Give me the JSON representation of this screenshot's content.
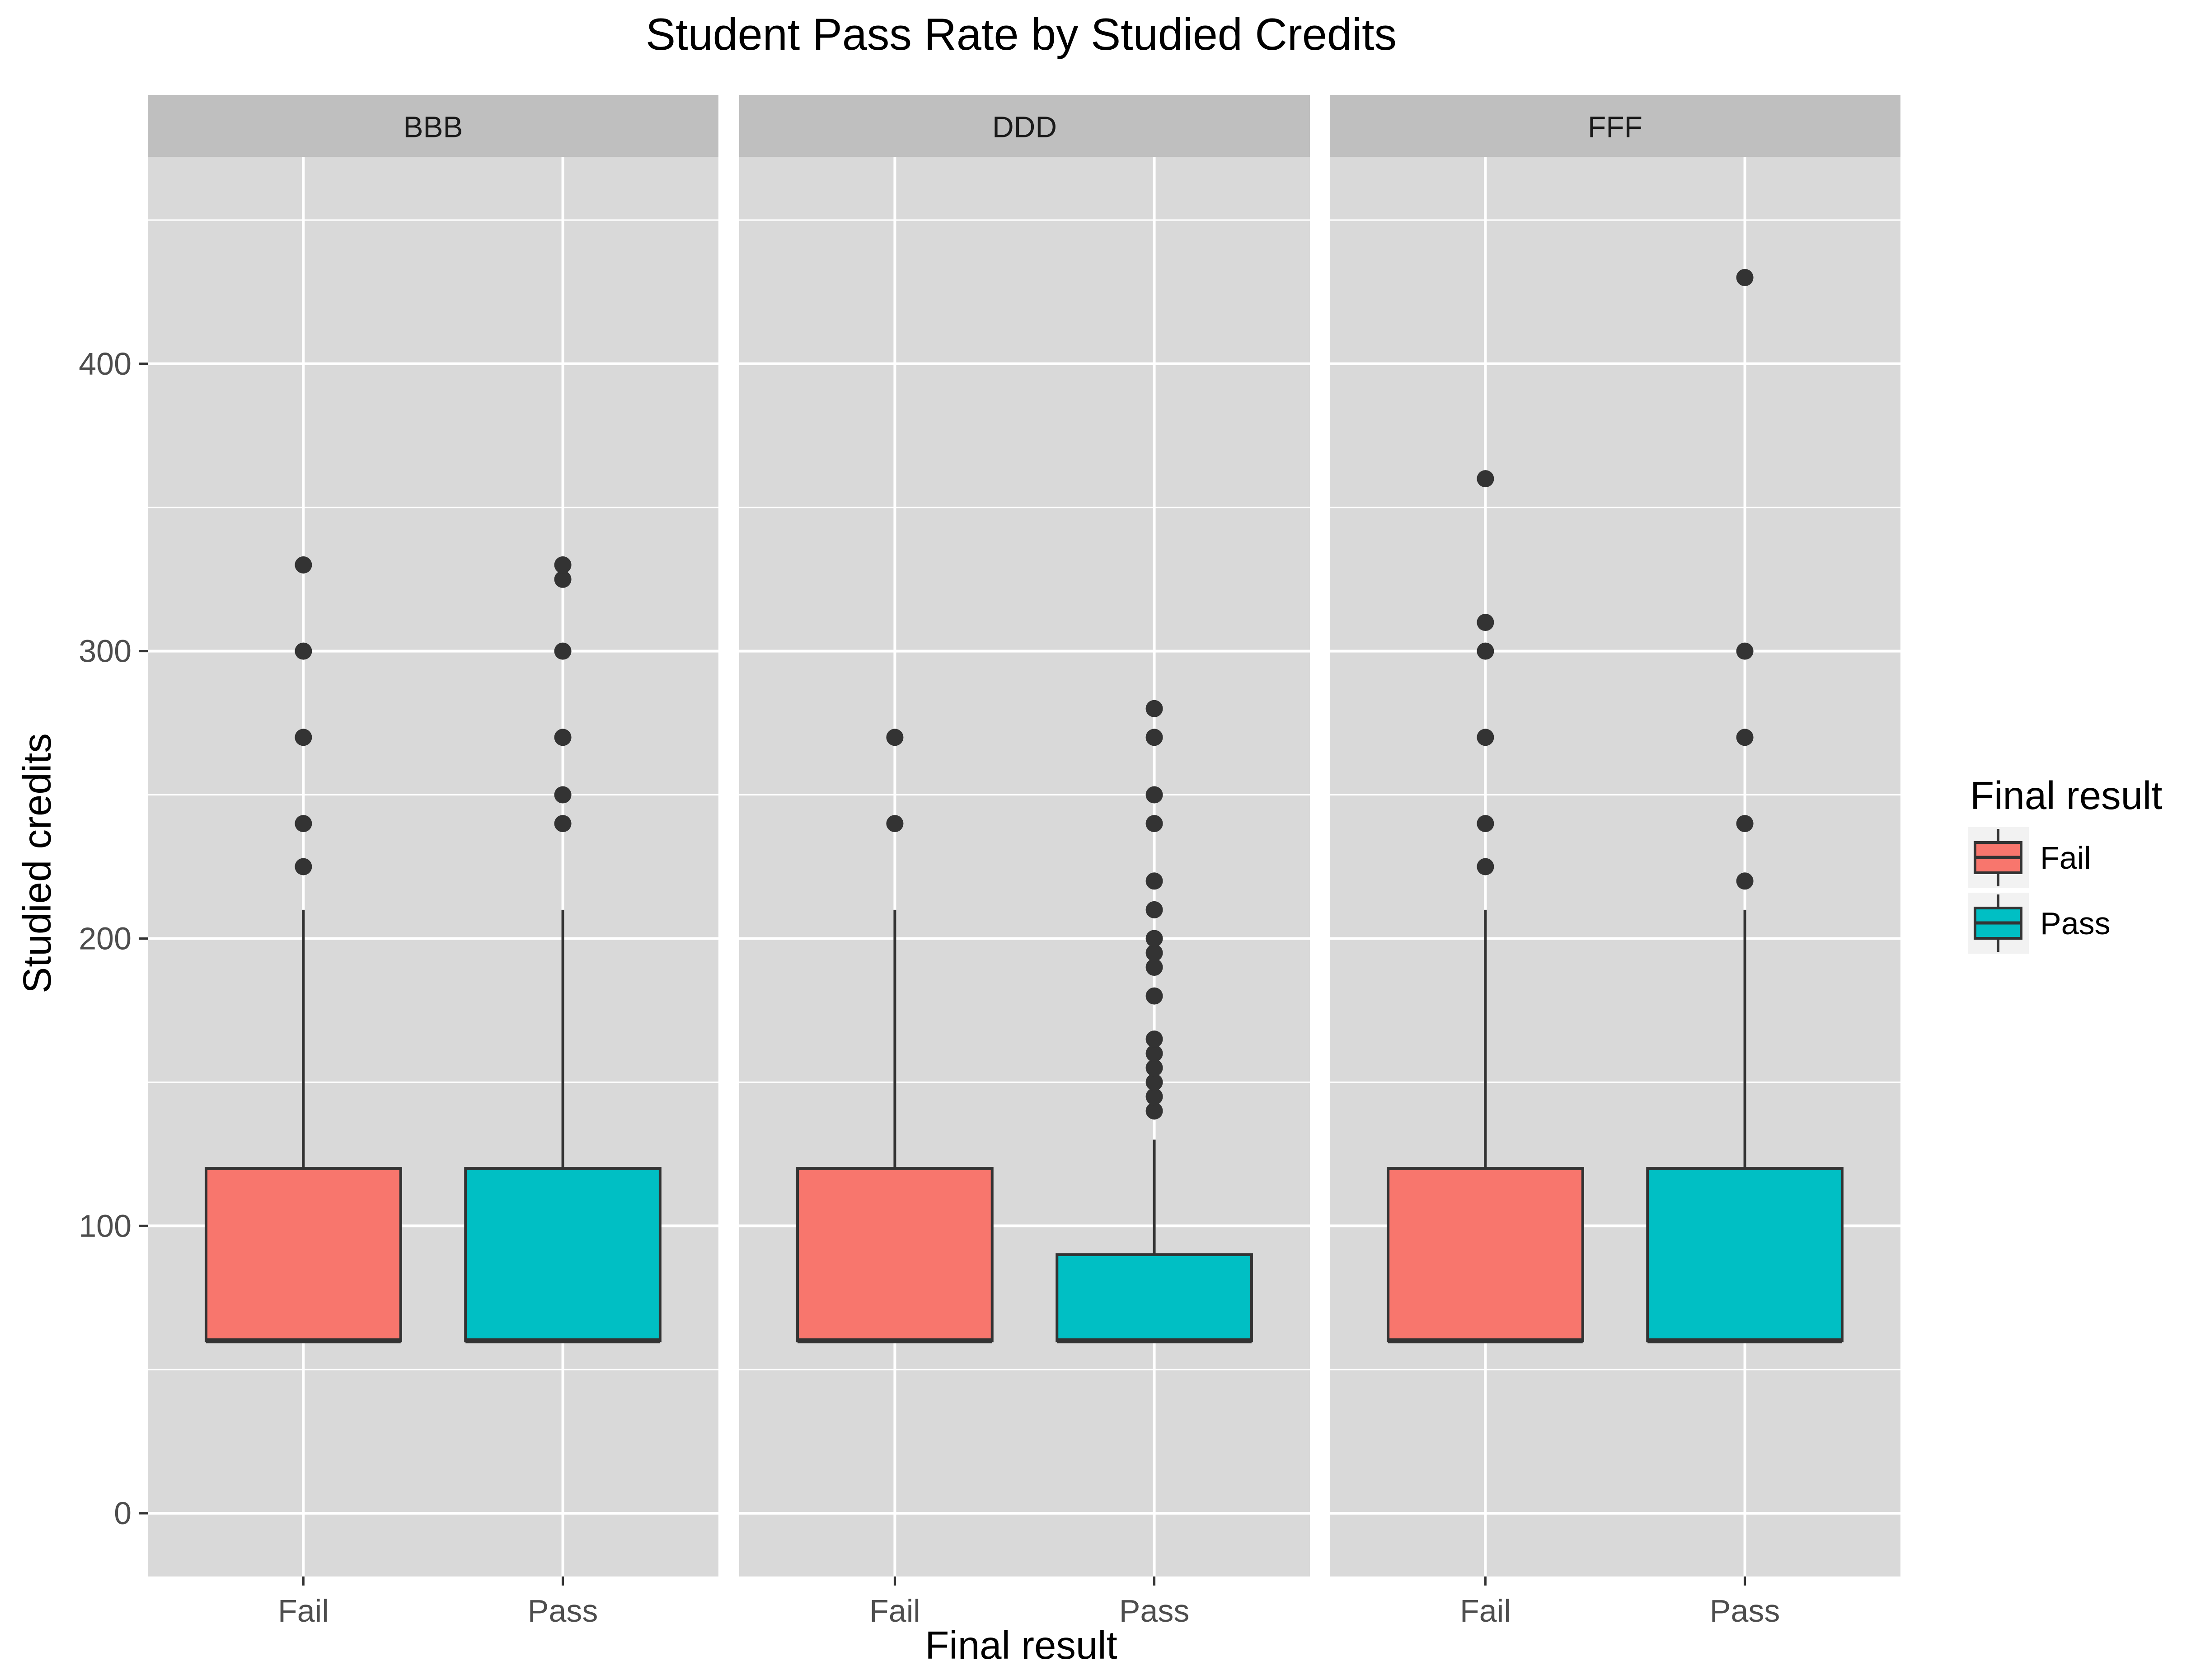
{
  "chart_data": {
    "type": "boxplot",
    "title": "Student Pass Rate by Studied Credits",
    "xlabel": "Final result",
    "ylabel": "Studied credits",
    "ylim": [
      -22,
      472
    ],
    "y_ticks": [
      0,
      100,
      200,
      300,
      400
    ],
    "categories": [
      "Fail",
      "Pass"
    ],
    "grid": true,
    "legend": {
      "title": "Final result",
      "placement": "right",
      "items": [
        {
          "label": "Fail",
          "color": "#F8766D"
        },
        {
          "label": "Pass",
          "color": "#00BFC4"
        }
      ]
    },
    "colors": {
      "Fail": "#F8766D",
      "Pass": "#00BFC4",
      "panel_background": "#D9D9D9",
      "strip_background": "#BFBFBF",
      "gridline": "#FFFFFF",
      "outline": "#333333"
    },
    "facets": [
      {
        "name": "BBB",
        "boxes": [
          {
            "category": "Fail",
            "min": 60,
            "q1": 60,
            "median": 60,
            "q3": 120,
            "max": 210,
            "outliers": [
              225,
              240,
              270,
              300,
              330
            ]
          },
          {
            "category": "Pass",
            "min": 60,
            "q1": 60,
            "median": 60,
            "q3": 120,
            "max": 210,
            "outliers": [
              240,
              250,
              270,
              300,
              325,
              330
            ]
          }
        ]
      },
      {
        "name": "DDD",
        "boxes": [
          {
            "category": "Fail",
            "min": 60,
            "q1": 60,
            "median": 60,
            "q3": 120,
            "max": 210,
            "outliers": [
              240,
              270
            ]
          },
          {
            "category": "Pass",
            "min": 60,
            "q1": 60,
            "median": 60,
            "q3": 90,
            "max": 130,
            "outliers": [
              140,
              145,
              150,
              155,
              160,
              165,
              180,
              190,
              195,
              200,
              210,
              220,
              240,
              250,
              270,
              280
            ]
          }
        ]
      },
      {
        "name": "FFF",
        "boxes": [
          {
            "category": "Fail",
            "min": 60,
            "q1": 60,
            "median": 60,
            "q3": 120,
            "max": 210,
            "outliers": [
              225,
              240,
              270,
              300,
              310,
              360
            ]
          },
          {
            "category": "Pass",
            "min": 60,
            "q1": 60,
            "median": 60,
            "q3": 120,
            "max": 210,
            "outliers": [
              220,
              240,
              270,
              300,
              430
            ]
          }
        ]
      }
    ]
  }
}
